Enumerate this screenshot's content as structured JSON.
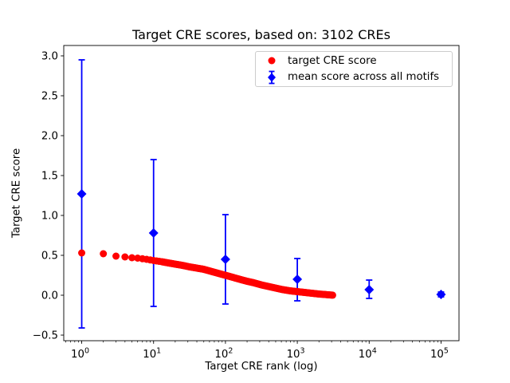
{
  "chart_data": {
    "type": "scatter",
    "title": "Target CRE scores, based on: 3102 CREs",
    "xlabel": "Target CRE rank (log)",
    "ylabel": "Target CRE score",
    "x_scale": "log",
    "xlim_log10": [
      -0.25,
      5.25
    ],
    "ylim": [
      -0.57,
      3.13
    ],
    "grid": false,
    "x_ticks": [
      {
        "value": 1,
        "base": "10",
        "exponent": "0"
      },
      {
        "value": 10,
        "base": "10",
        "exponent": "1"
      },
      {
        "value": 100,
        "base": "10",
        "exponent": "2"
      },
      {
        "value": 1000,
        "base": "10",
        "exponent": "3"
      },
      {
        "value": 10000,
        "base": "10",
        "exponent": "4"
      },
      {
        "value": 100000,
        "base": "10",
        "exponent": "5"
      }
    ],
    "y_ticks": [
      {
        "value": -0.5,
        "label": "−0.5"
      },
      {
        "value": 0.0,
        "label": "0.0"
      },
      {
        "value": 0.5,
        "label": "0.5"
      },
      {
        "value": 1.0,
        "label": "1.0"
      },
      {
        "value": 1.5,
        "label": "1.5"
      },
      {
        "value": 2.0,
        "label": "2.0"
      },
      {
        "value": 2.5,
        "label": "2.5"
      },
      {
        "value": 3.0,
        "label": "3.0"
      }
    ],
    "series": [
      {
        "name": "target CRE score",
        "marker": "circle",
        "color": "#ff0000",
        "n_points": 3102,
        "x_range": [
          1,
          3102
        ],
        "anchor_points": [
          [
            1,
            0.53
          ],
          [
            2,
            0.52
          ],
          [
            3,
            0.49
          ],
          [
            4,
            0.48
          ],
          [
            5,
            0.47
          ],
          [
            6,
            0.465
          ],
          [
            8,
            0.45
          ],
          [
            10,
            0.435
          ],
          [
            13,
            0.42
          ],
          [
            16,
            0.405
          ],
          [
            20,
            0.39
          ],
          [
            25,
            0.375
          ],
          [
            32,
            0.355
          ],
          [
            40,
            0.34
          ],
          [
            50,
            0.325
          ],
          [
            63,
            0.3
          ],
          [
            79,
            0.275
          ],
          [
            100,
            0.25
          ],
          [
            126,
            0.225
          ],
          [
            158,
            0.2
          ],
          [
            200,
            0.175
          ],
          [
            251,
            0.155
          ],
          [
            316,
            0.13
          ],
          [
            398,
            0.11
          ],
          [
            501,
            0.09
          ],
          [
            631,
            0.07
          ],
          [
            794,
            0.055
          ],
          [
            1000,
            0.045
          ],
          [
            1259,
            0.035
          ],
          [
            1585,
            0.025
          ],
          [
            1995,
            0.015
          ],
          [
            2512,
            0.008
          ],
          [
            3102,
            0.001
          ]
        ]
      },
      {
        "name": "mean score across all motifs",
        "marker": "diamond",
        "color": "#0000ff",
        "error_bars": true,
        "points": [
          {
            "x": 1,
            "mean": 1.27,
            "lo": -0.41,
            "hi": 2.95
          },
          {
            "x": 10,
            "mean": 0.78,
            "lo": -0.14,
            "hi": 1.7
          },
          {
            "x": 100,
            "mean": 0.45,
            "lo": -0.11,
            "hi": 1.01
          },
          {
            "x": 1000,
            "mean": 0.2,
            "lo": -0.07,
            "hi": 0.46
          },
          {
            "x": 10000,
            "mean": 0.07,
            "lo": -0.04,
            "hi": 0.19
          },
          {
            "x": 100000,
            "mean": 0.01,
            "lo": -0.02,
            "hi": 0.04
          }
        ]
      }
    ],
    "legend": {
      "position": "upper right",
      "entries": [
        {
          "label": "target CRE score",
          "marker": "circle",
          "color": "#ff0000"
        },
        {
          "label": "mean score across all motifs",
          "marker": "diamond-errorbar",
          "color": "#0000ff"
        }
      ]
    }
  }
}
